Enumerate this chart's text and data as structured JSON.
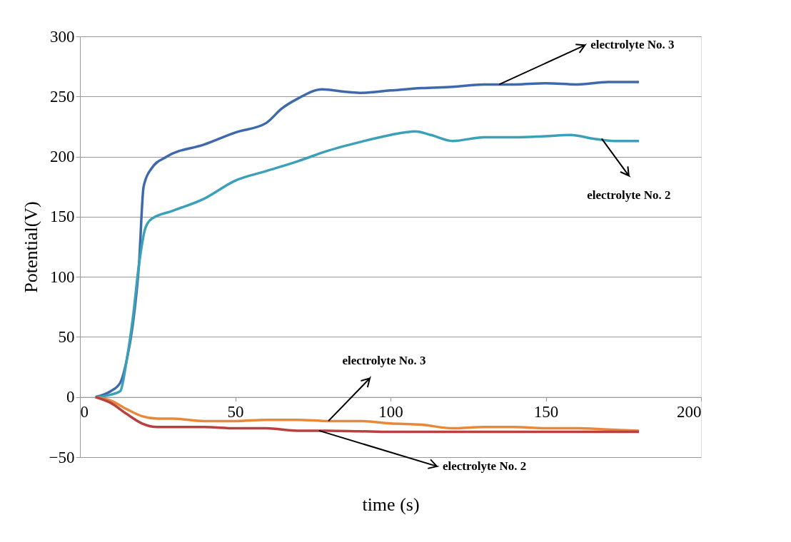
{
  "chart_data": {
    "type": "line",
    "xlabel": "time (s)",
    "ylabel": "Potential(V)",
    "xlim": [
      0,
      200
    ],
    "xticks": [
      0,
      50,
      100,
      150,
      200
    ],
    "ylim": [
      -50,
      300
    ],
    "yticks": [
      -50,
      0,
      50,
      100,
      150,
      200,
      250,
      300
    ],
    "grid": "y",
    "marker": "none",
    "line_style": "solid",
    "x": [
      5,
      10,
      13,
      15,
      17,
      19,
      20.5,
      23,
      28,
      40,
      50,
      60,
      65,
      70,
      78,
      85,
      90,
      100,
      110,
      120,
      130,
      140,
      150,
      160,
      170,
      180
    ],
    "series": [
      {
        "color": "#3e6aab",
        "values": [
          0,
          5,
          12,
          30,
          60,
          110,
          175,
          190,
          200,
          210,
          220,
          228,
          240,
          248,
          256,
          254,
          253,
          255,
          257,
          258,
          260,
          260,
          261,
          260,
          262,
          262
        ]
      },
      {
        "color": "#3ba0b8",
        "x": [
          5,
          10,
          13,
          15,
          17,
          19,
          21,
          23,
          30,
          40,
          50,
          60,
          70,
          80,
          90,
          100,
          108,
          113,
          120,
          130,
          140,
          150,
          158,
          165,
          172,
          180
        ],
        "values": [
          0,
          2,
          5,
          30,
          65,
          110,
          140,
          148,
          155,
          165,
          180,
          188,
          196,
          205,
          212,
          218,
          221,
          218,
          213,
          216,
          216,
          217,
          218,
          215,
          213,
          213
        ]
      },
      {
        "color": "#e8893a",
        "x": [
          5,
          10,
          15,
          20,
          25,
          30,
          40,
          50,
          60,
          70,
          80,
          90,
          100,
          110,
          120,
          130,
          140,
          150,
          160,
          170,
          180
        ],
        "values": [
          0,
          -3,
          -10,
          -16,
          -18,
          -18,
          -20,
          -20,
          -19,
          -19,
          -20,
          -20,
          -22,
          -23,
          -26,
          -25,
          -25,
          -26,
          -26,
          -27,
          -28
        ]
      },
      {
        "color": "#b94040",
        "x": [
          5,
          10,
          15,
          20,
          25,
          30,
          40,
          50,
          60,
          70,
          80,
          90,
          100,
          110,
          120,
          130,
          140,
          150,
          160,
          170,
          180
        ],
        "values": [
          0,
          -5,
          -14,
          -22,
          -25,
          -25,
          -25,
          -26,
          -26,
          -28,
          -28,
          -28.5,
          -29,
          -29,
          -29,
          -29,
          -29,
          -29,
          -29,
          -29,
          -29
        ]
      }
    ],
    "annotations": [
      {
        "text": "electrolyte No. 3",
        "x": 135,
        "y": 260
      },
      {
        "text": "electrolyte No. 2",
        "x": 168,
        "y": 215
      },
      {
        "text": "electrolyte No. 3",
        "x": 80,
        "y": -20
      },
      {
        "text": "electrolyte No. 2",
        "x": 77,
        "y": -28
      }
    ]
  }
}
